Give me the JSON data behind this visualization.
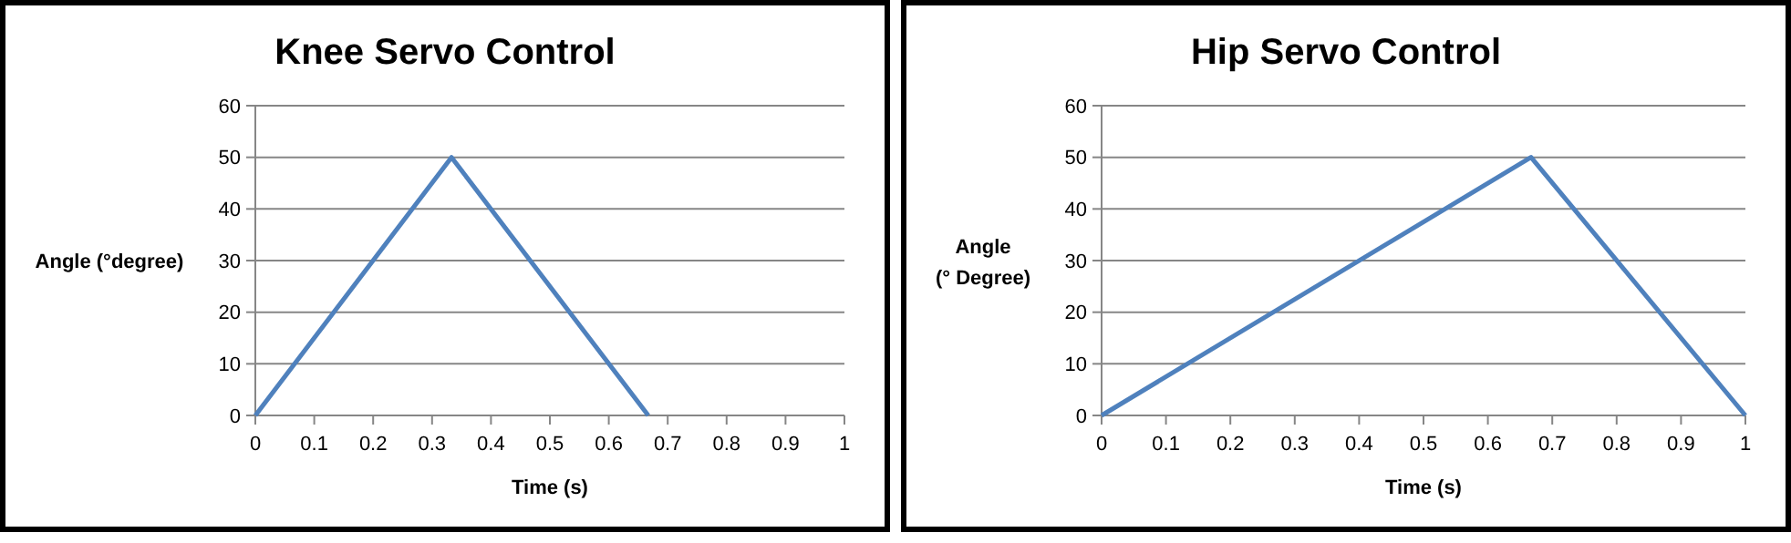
{
  "chart_data": [
    {
      "type": "line",
      "title": "Knee Servo Control",
      "xlabel": "Time (s)",
      "ylabel": "Angle (°degree)",
      "x": [
        0,
        0.333,
        0.667
      ],
      "series": [
        {
          "color": "#4f81bd",
          "values": [
            0,
            50,
            0
          ]
        }
      ],
      "xlim": [
        0,
        1
      ],
      "xticks": [
        0,
        0.1,
        0.2,
        0.3,
        0.4,
        0.5,
        0.6,
        0.7,
        0.8,
        0.9,
        1
      ],
      "ylim": [
        0,
        60
      ],
      "yticks": [
        0,
        10,
        20,
        30,
        40,
        50,
        60
      ],
      "grid": "y",
      "marker": "none",
      "line_style": "solid"
    },
    {
      "type": "line",
      "title": "Hip Servo Control",
      "xlabel": "Time (s)",
      "ylabel": "Angle\n(° Degree)",
      "x": [
        0,
        0.667,
        1
      ],
      "series": [
        {
          "color": "#4f81bd",
          "values": [
            0,
            50,
            0
          ]
        }
      ],
      "xlim": [
        0,
        1
      ],
      "xticks": [
        0,
        0.1,
        0.2,
        0.3,
        0.4,
        0.5,
        0.6,
        0.7,
        0.8,
        0.9,
        1
      ],
      "ylim": [
        0,
        60
      ],
      "yticks": [
        0,
        10,
        20,
        30,
        40,
        50,
        60
      ],
      "grid": "y",
      "marker": "none",
      "line_style": "solid"
    }
  ]
}
